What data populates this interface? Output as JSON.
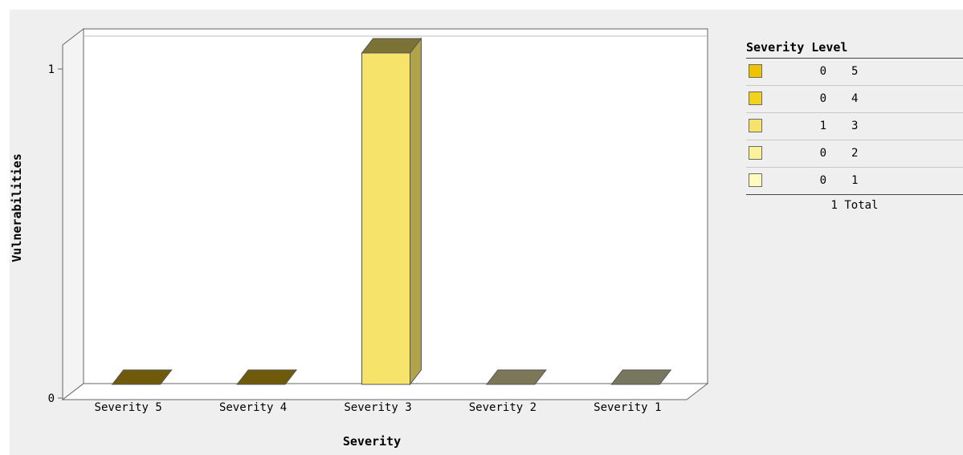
{
  "chart_data": {
    "type": "bar",
    "title": "",
    "xlabel": "Severity",
    "ylabel": "Vulnerabilities",
    "categories": [
      "Severity 5",
      "Severity 4",
      "Severity 3",
      "Severity 2",
      "Severity 1"
    ],
    "values": [
      0,
      0,
      1,
      0,
      0
    ],
    "ylim": [
      0,
      1
    ],
    "yticks": [
      "0",
      "1"
    ],
    "grid": false,
    "three_d": true,
    "bar_colors": [
      "#6e5a0a",
      "#6e5a0a",
      "#f6e36a",
      "#7b7757",
      "#777760"
    ],
    "legend_position": "right"
  },
  "legend": {
    "title": "Severity Level",
    "rows": [
      {
        "count": "0",
        "level": "5",
        "color": "#eec300"
      },
      {
        "count": "0",
        "level": "4",
        "color": "#f3d21f"
      },
      {
        "count": "1",
        "level": "3",
        "color": "#f6e36a"
      },
      {
        "count": "0",
        "level": "2",
        "color": "#fbf39a"
      },
      {
        "count": "0",
        "level": "1",
        "color": "#fefbc0"
      }
    ],
    "total": "1 Total"
  }
}
